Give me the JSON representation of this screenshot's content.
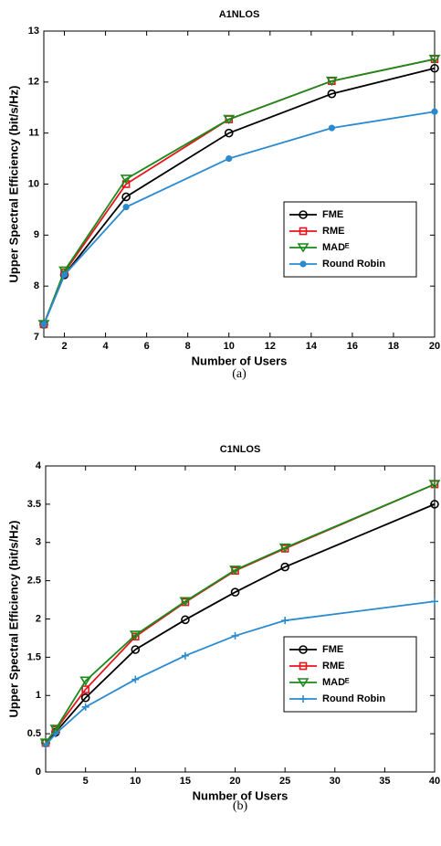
{
  "chart_data": [
    {
      "type": "line",
      "title": "A1NLOS",
      "xlabel": "Number of Users",
      "ylabel": "Upper Spectral Efficiency (bit/s/Hz)",
      "caption": "(a)",
      "x": [
        1,
        2,
        5,
        10,
        15,
        20
      ],
      "xlim": [
        1,
        20
      ],
      "xticks": [
        2,
        4,
        6,
        8,
        10,
        12,
        14,
        16,
        18,
        20
      ],
      "ylim": [
        7,
        13
      ],
      "yticks": [
        7,
        8,
        9,
        10,
        11,
        12,
        13
      ],
      "legend": "lower right",
      "series": [
        {
          "name": "FME",
          "color": "#000000",
          "marker": "o",
          "values": [
            7.25,
            8.22,
            9.75,
            11.0,
            11.77,
            12.27
          ]
        },
        {
          "name": "RME",
          "color": "#e8141c",
          "marker": "s",
          "values": [
            7.25,
            8.27,
            10.0,
            11.27,
            12.02,
            12.45
          ]
        },
        {
          "name": "MADᴱ",
          "color": "#1a8a1a",
          "marker": "v",
          "values": [
            7.25,
            8.3,
            10.1,
            11.27,
            12.02,
            12.45
          ]
        },
        {
          "name": "Round Robin",
          "color": "#2a8ad0",
          "marker": ".",
          "values": [
            7.25,
            8.22,
            9.55,
            10.5,
            11.1,
            11.42
          ]
        }
      ]
    },
    {
      "type": "line",
      "title": "C1NLOS",
      "xlabel": "Number of Users",
      "ylabel": "Upper Spectral Efficiency (bit/s/Hz)",
      "caption": "(b)",
      "x": [
        1,
        2,
        5,
        10,
        15,
        20,
        25,
        40
      ],
      "xlim": [
        1,
        40
      ],
      "xticks": [
        5,
        10,
        15,
        20,
        25,
        30,
        35,
        40
      ],
      "ylim": [
        0,
        4
      ],
      "yticks": [
        0,
        0.5,
        1,
        1.5,
        2,
        2.5,
        3,
        3.5,
        4
      ],
      "legend": "lower right",
      "series": [
        {
          "name": "FME",
          "color": "#000000",
          "marker": "o",
          "values": [
            0.38,
            0.52,
            0.97,
            1.6,
            1.99,
            2.35,
            2.68,
            3.5
          ]
        },
        {
          "name": "RME",
          "color": "#e8141c",
          "marker": "s",
          "values": [
            0.38,
            0.55,
            1.08,
            1.77,
            2.22,
            2.63,
            2.92,
            3.76
          ]
        },
        {
          "name": "MADᴱ",
          "color": "#1a8a1a",
          "marker": "v",
          "values": [
            0.38,
            0.56,
            1.19,
            1.79,
            2.23,
            2.64,
            2.93,
            3.76
          ]
        },
        {
          "name": "Round Robin",
          "color": "#2a8ad0",
          "marker": "+",
          "values": [
            0.35,
            0.5,
            0.85,
            1.21,
            1.52,
            1.78,
            1.98,
            2.23
          ]
        }
      ]
    }
  ]
}
